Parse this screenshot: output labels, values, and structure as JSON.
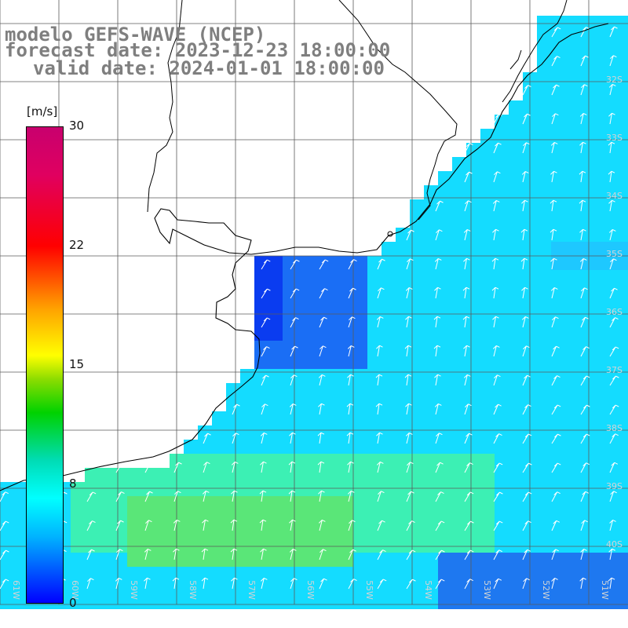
{
  "title": {
    "line1": "modelo GEFS-WAVE (NCEP)",
    "line2": "forecast date: 2023-12-23 18:00:00",
    "line3": "valid date: 2024-01-01 18:00:00"
  },
  "colorbar": {
    "units": "[m/s]",
    "ticks": [
      "30",
      "22",
      "15",
      "8",
      "0"
    ],
    "colors": [
      "#0000ff",
      "#00b4ff",
      "#00ffff",
      "#00dcb4",
      "#00d200",
      "#8cdc00",
      "#ffff00",
      "#ffa000",
      "#ff0000",
      "#c8006e"
    ]
  },
  "axes": {
    "lon_labels": [
      "61W",
      "60W",
      "59W",
      "58W",
      "57W",
      "56W",
      "55W",
      "54W",
      "53W",
      "52W",
      "51W",
      "50W"
    ],
    "lat_labels": [
      "32S",
      "33S",
      "34S",
      "35S",
      "36S",
      "37S",
      "38S",
      "39S",
      "40S"
    ]
  },
  "map": {
    "field": "wind speed",
    "arrow_direction": "south-westerly to southerly flow toward north-east",
    "land_color": "#ffffff",
    "grid_color": "#5a5a5a"
  }
}
